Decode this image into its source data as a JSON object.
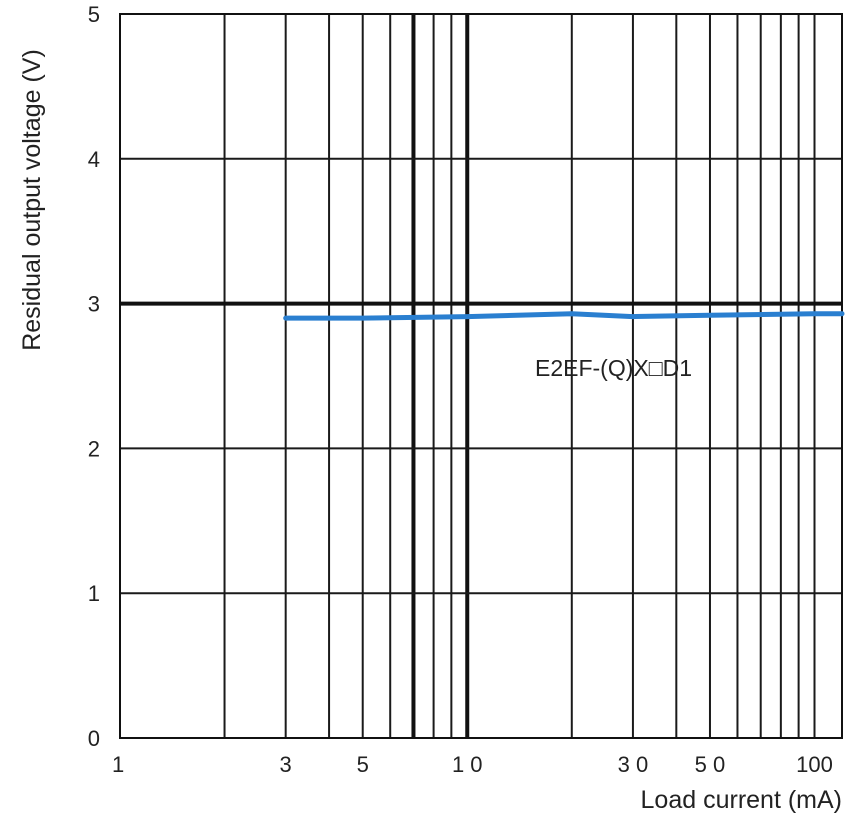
{
  "chart_data": {
    "type": "line",
    "title": "",
    "xlabel": "Load current (mA)",
    "ylabel": "Residual output voltage (V)",
    "x_scale": "log",
    "xlim": [
      1,
      120
    ],
    "ylim": [
      0,
      5
    ],
    "x_gridlines": [
      1,
      2,
      3,
      4,
      5,
      6,
      7,
      8,
      9,
      10,
      20,
      30,
      40,
      50,
      60,
      70,
      80,
      90,
      100
    ],
    "x_gridlines_bold": [
      7,
      10
    ],
    "y_gridlines": [
      0,
      1,
      2,
      3,
      4,
      5
    ],
    "y_gridlines_bold": [
      3
    ],
    "x_ticks": [
      {
        "value": 1,
        "label": "1"
      },
      {
        "value": 3,
        "label": "3"
      },
      {
        "value": 5,
        "label": "5"
      },
      {
        "value": 10,
        "label": "1 0"
      },
      {
        "value": 30,
        "label": "3 0"
      },
      {
        "value": 50,
        "label": "5 0"
      },
      {
        "value": 100,
        "label": "100"
      }
    ],
    "y_ticks": [
      {
        "value": 0,
        "label": "0"
      },
      {
        "value": 1,
        "label": "1"
      },
      {
        "value": 2,
        "label": "2"
      },
      {
        "value": 3,
        "label": "3"
      },
      {
        "value": 4,
        "label": "4"
      },
      {
        "value": 5,
        "label": "5"
      }
    ],
    "grid": true,
    "legend": "none",
    "series": [
      {
        "name": "E2EF-(Q)X□D1",
        "color": "#2a7fd0",
        "x": [
          3,
          5,
          10,
          20,
          30,
          50,
          100,
          120
        ],
        "y": [
          2.9,
          2.9,
          2.91,
          2.93,
          2.91,
          2.92,
          2.93,
          2.93
        ]
      }
    ]
  }
}
